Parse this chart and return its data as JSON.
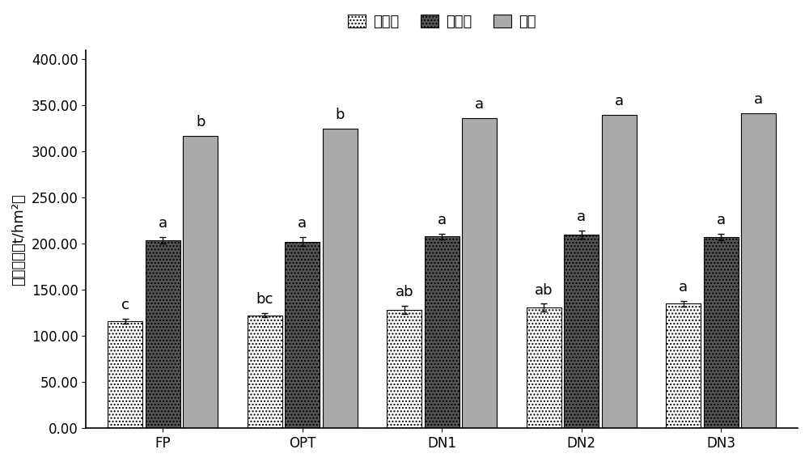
{
  "categories": [
    "FP",
    "OPT",
    "DN1",
    "DN2",
    "DN3"
  ],
  "season1_values": [
    116.0,
    122.5,
    128.5,
    131.0,
    135.0
  ],
  "season1_errors": [
    2.5,
    2.0,
    4.5,
    4.0,
    3.5
  ],
  "season2_values": [
    204.0,
    202.5,
    208.0,
    210.0,
    207.0
  ],
  "season2_errors": [
    3.5,
    4.5,
    3.0,
    4.0,
    3.5
  ],
  "total_values": [
    317.0,
    325.0,
    336.0,
    339.5,
    342.0
  ],
  "season1_labels": [
    "c",
    "bc",
    "ab",
    "ab",
    "a"
  ],
  "season2_labels": [
    "a",
    "a",
    "a",
    "a",
    "a"
  ],
  "total_labels": [
    "b",
    "b",
    "a",
    "a",
    "a"
  ],
  "ylabel": "番茄产量（t/hm²）",
  "ylim": [
    0,
    410
  ],
  "yticks": [
    0,
    50,
    100,
    150,
    200,
    250,
    300,
    350,
    400
  ],
  "ytick_labels": [
    "0.00",
    "50.00",
    "100.00",
    "150.00",
    "200.00",
    "250.00",
    "300.00",
    "350.00",
    "400.00"
  ],
  "legend_labels": [
    "第一季",
    "第二季",
    "合计"
  ],
  "bar_width": 0.25,
  "season1_color": "white",
  "season1_hatch": "....",
  "season2_color": "#555555",
  "season2_hatch": "....",
  "total_color": "#aaaaaa",
  "label_fontsize": 13,
  "tick_fontsize": 12,
  "annotation_fontsize": 13,
  "edgecolor": "black"
}
